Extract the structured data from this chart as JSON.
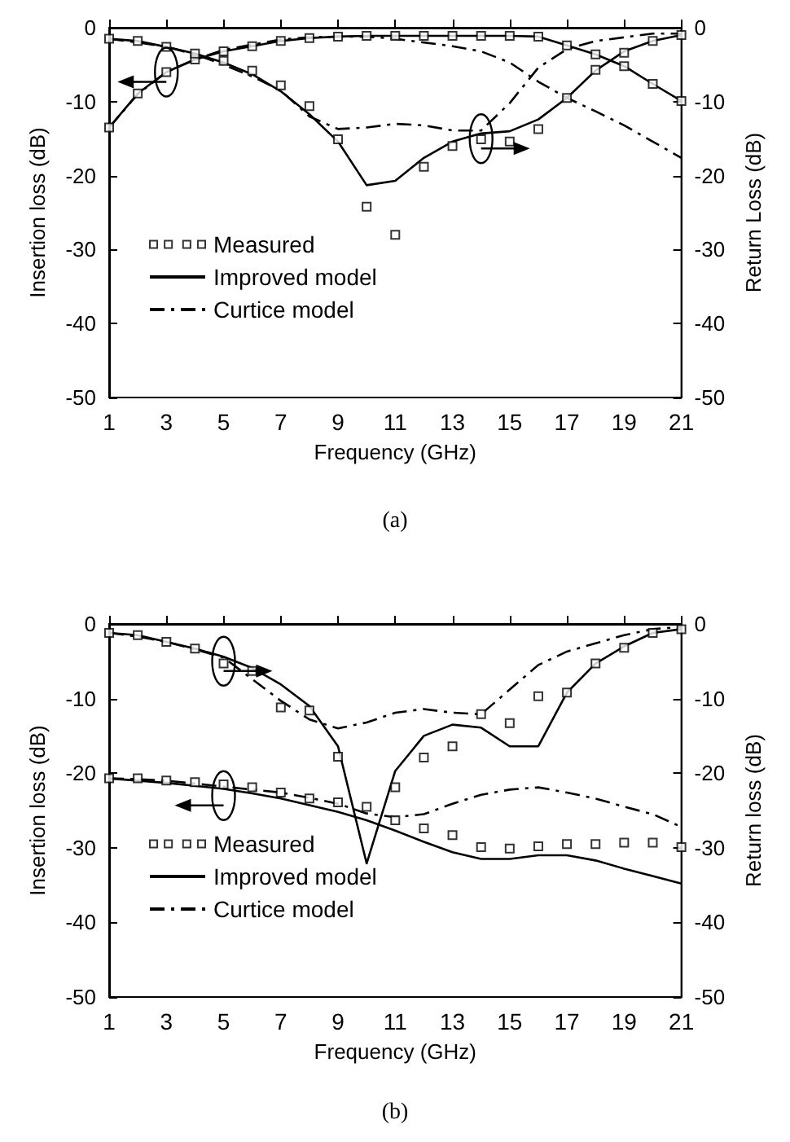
{
  "chart_data": [
    {
      "type": "line",
      "title": "(a)",
      "xlabel": "Frequency (GHz)",
      "ylabel": "Insertion loss (dB)",
      "y2label": "Return Loss (dB)",
      "x": [
        1,
        2,
        3,
        4,
        5,
        6,
        7,
        8,
        9,
        10,
        11,
        12,
        13,
        14,
        15,
        16,
        17,
        18,
        19,
        20,
        21
      ],
      "xlim": [
        1,
        21
      ],
      "xticks": [
        1,
        3,
        5,
        7,
        9,
        11,
        13,
        15,
        17,
        19,
        21
      ],
      "ylim": [
        -50,
        0
      ],
      "yticks": [
        0,
        -10,
        -20,
        -30,
        -40,
        -50
      ],
      "y2lim": [
        -50,
        0
      ],
      "y2ticks": [
        0,
        -10,
        -20,
        -30,
        -40,
        -50
      ],
      "grid": false,
      "legend": "bottom left",
      "series": [
        {
          "name": "Measured",
          "type": "scatter",
          "marker": "square",
          "color": "#000000",
          "values": [
            -13.5,
            -8.9,
            -6.0,
            -4.3,
            -3.2,
            -2.5,
            -1.8,
            -1.4,
            -1.2,
            -1.1,
            -1.1,
            -1.1,
            -1.1,
            -1.1,
            -1.1,
            -1.2,
            -2.4,
            -3.6,
            -5.2,
            -7.6,
            -9.9
          ]
        },
        {
          "type": "scatter",
          "marker": "square",
          "color": "#000000",
          "values": [
            -1.5,
            -1.8,
            -2.6,
            -3.5,
            -4.5,
            -5.8,
            -7.8,
            -10.6,
            -15.1,
            -24.2,
            -28.0,
            -18.8,
            -16.0,
            -15.1,
            -15.4,
            -13.7,
            -9.5,
            -5.7,
            -3.4,
            -1.8,
            -1.0
          ]
        },
        {
          "name": "Improved model",
          "line_style": "solid",
          "color": "#000000",
          "values": [
            -13.5,
            -8.9,
            -6.0,
            -4.3,
            -3.2,
            -2.5,
            -1.8,
            -1.4,
            -1.2,
            -1.1,
            -1.1,
            -1.1,
            -1.1,
            -1.1,
            -1.1,
            -1.2,
            -2.4,
            -3.6,
            -5.2,
            -7.6,
            -9.9
          ]
        },
        {
          "line_style": "solid",
          "color": "#000000",
          "values": [
            -1.5,
            -1.8,
            -2.6,
            -3.5,
            -4.7,
            -6.3,
            -8.6,
            -11.7,
            -15.4,
            -21.3,
            -20.7,
            -17.6,
            -15.4,
            -14.3,
            -14.0,
            -12.4,
            -9.5,
            -5.8,
            -3.2,
            -1.8,
            -1.0
          ]
        },
        {
          "name": "Curtice model",
          "line_style": "dashdot",
          "color": "#000000",
          "values": [
            -13.5,
            -9.0,
            -6.0,
            -4.3,
            -3.0,
            -2.3,
            -1.6,
            -1.3,
            -1.2,
            -1.2,
            -1.5,
            -2.0,
            -2.5,
            -3.2,
            -4.7,
            -7.3,
            -9.5,
            -11.3,
            -13.2,
            -15.4,
            -17.6
          ]
        },
        {
          "line_style": "dashdot",
          "color": "#000000",
          "values": [
            -1.5,
            -2.0,
            -2.6,
            -3.6,
            -5.0,
            -6.6,
            -8.5,
            -12.0,
            -13.7,
            -13.5,
            -13.0,
            -13.2,
            -13.9,
            -13.9,
            -10.2,
            -5.4,
            -2.9,
            -1.8,
            -1.3,
            -0.8,
            -0.8
          ]
        }
      ]
    },
    {
      "type": "line",
      "title": "(b)",
      "xlabel": "Frequency (GHz)",
      "ylabel": "Insertion loss (dB)",
      "y2label": "Return loss (dB)",
      "x": [
        1,
        2,
        3,
        4,
        5,
        6,
        7,
        8,
        9,
        10,
        11,
        12,
        13,
        14,
        15,
        16,
        17,
        18,
        19,
        20,
        21
      ],
      "xlim": [
        1,
        21
      ],
      "xticks": [
        1,
        3,
        5,
        7,
        9,
        11,
        13,
        15,
        17,
        19,
        21
      ],
      "ylim": [
        -50,
        0
      ],
      "yticks": [
        0,
        -10,
        -20,
        -30,
        -40,
        -50
      ],
      "y2lim": [
        -50,
        0
      ],
      "y2ticks": [
        0,
        -10,
        -20,
        -30,
        -40,
        -50
      ],
      "grid": false,
      "legend": "bottom left",
      "series": [
        {
          "name": "Measured",
          "type": "scatter",
          "marker": "square",
          "color": "#000000",
          "values": [
            -20.7,
            -20.7,
            -21.0,
            -21.2,
            -21.5,
            -21.9,
            -22.6,
            -23.4,
            -23.9,
            -24.5,
            -26.3,
            -27.4,
            -28.3,
            -29.9,
            -30.1,
            -29.8,
            -29.5,
            -29.5,
            -29.3,
            -29.3,
            -29.9
          ]
        },
        {
          "type": "scatter",
          "marker": "square",
          "color": "#000000",
          "values": [
            -1.2,
            -1.5,
            -2.4,
            -3.3,
            -5.3,
            -6.3,
            -11.2,
            -11.6,
            -17.8,
            null,
            -21.9,
            -17.9,
            -16.4,
            -12.1,
            -13.3,
            -9.7,
            -9.2,
            -5.3,
            -3.2,
            -1.2,
            -0.7
          ]
        },
        {
          "name": "Improved model",
          "line_style": "solid",
          "color": "#000000",
          "values": [
            -20.7,
            -21.0,
            -21.3,
            -21.7,
            -22.1,
            -22.7,
            -23.4,
            -24.3,
            -25.2,
            -26.3,
            -27.7,
            -29.2,
            -30.6,
            -31.5,
            -31.5,
            -31.0,
            -31.0,
            -31.7,
            -32.8,
            -33.8,
            -34.8
          ]
        },
        {
          "line_style": "solid",
          "color": "#000000",
          "values": [
            -1.2,
            -1.5,
            -2.4,
            -3.3,
            -4.4,
            -5.9,
            -8.1,
            -11.0,
            -16.4,
            -32.1,
            -19.7,
            -15.0,
            -13.5,
            -13.9,
            -16.4,
            -16.4,
            -9.2,
            -5.3,
            -3.0,
            -1.2,
            -0.7
          ]
        },
        {
          "name": "Curtice model",
          "line_style": "dashdot",
          "color": "#000000",
          "values": [
            -20.7,
            -20.8,
            -21.0,
            -21.4,
            -21.8,
            -22.2,
            -22.6,
            -23.3,
            -24.1,
            -25.4,
            -25.9,
            -25.5,
            -24.1,
            -22.9,
            -22.2,
            -21.9,
            -22.6,
            -23.4,
            -24.5,
            -25.5,
            -27.2
          ]
        },
        {
          "line_style": "dashdot",
          "color": "#000000",
          "values": [
            -1.2,
            -1.7,
            -2.4,
            -3.4,
            -4.5,
            -7.4,
            -10.3,
            -12.8,
            -14.0,
            -13.2,
            -11.9,
            -11.4,
            -11.9,
            -12.1,
            -8.8,
            -5.5,
            -3.7,
            -2.6,
            -1.5,
            -0.7,
            -0.4
          ]
        }
      ]
    }
  ]
}
